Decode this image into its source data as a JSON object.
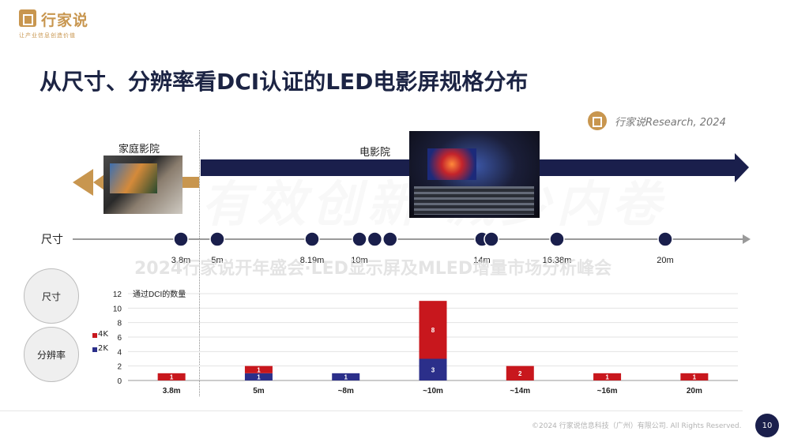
{
  "brand": {
    "name": "行家说",
    "tagline": "让产业信息创造价值"
  },
  "title": "从尺寸、分辨率看DCI认证的LED电影屏规格分布",
  "source": "行家说Research, 2024",
  "watermark": {
    "line": "2024行家说开年盛会·LED显示屏及MLED增量市场分析峰会",
    "script": "有效创新 减少内卷"
  },
  "segments": {
    "home": "家庭影院",
    "cinema": "电影院"
  },
  "size_axis": {
    "label": "尺寸",
    "points": [
      {
        "value": 3.8,
        "label": "3.8m"
      },
      {
        "value": 5,
        "label": "5m"
      },
      {
        "value": 8.19,
        "label": "8.19m"
      },
      {
        "value": 10,
        "label": "10m"
      },
      {
        "value": 10.5,
        "label": ""
      },
      {
        "value": 11,
        "label": ""
      },
      {
        "value": 14,
        "label": "14m"
      },
      {
        "value": 14.3,
        "label": ""
      },
      {
        "value": 16.38,
        "label": "16.38m"
      },
      {
        "value": 20,
        "label": "20m"
      }
    ]
  },
  "circles": {
    "size": "尺寸",
    "resolution": "分辨率"
  },
  "legend": {
    "k4": "4K",
    "k2": "2K"
  },
  "colors": {
    "k4": "#c8171d",
    "k2": "#2b2f8a",
    "accent": "#c8964f",
    "navy": "#1a1f4c"
  },
  "chart_data": {
    "type": "bar",
    "stacked": true,
    "ylabel": "通过DCI的数量",
    "ylim": [
      0,
      12
    ],
    "yticks": [
      0,
      2,
      4,
      6,
      8,
      10,
      12
    ],
    "categories": [
      "3.8m",
      "5m",
      "~8m",
      "~10m",
      "~14m",
      "~16m",
      "20m"
    ],
    "series": [
      {
        "name": "2K",
        "values": [
          0,
          1,
          1,
          3,
          0,
          0,
          0
        ]
      },
      {
        "name": "4K",
        "values": [
          1,
          1,
          0,
          8,
          2,
          1,
          1
        ]
      }
    ],
    "grid": true
  },
  "footer": {
    "copyright": "©2024 行家说信息科技（广州）有限公司. All Rights Reserved.",
    "page": "10"
  }
}
